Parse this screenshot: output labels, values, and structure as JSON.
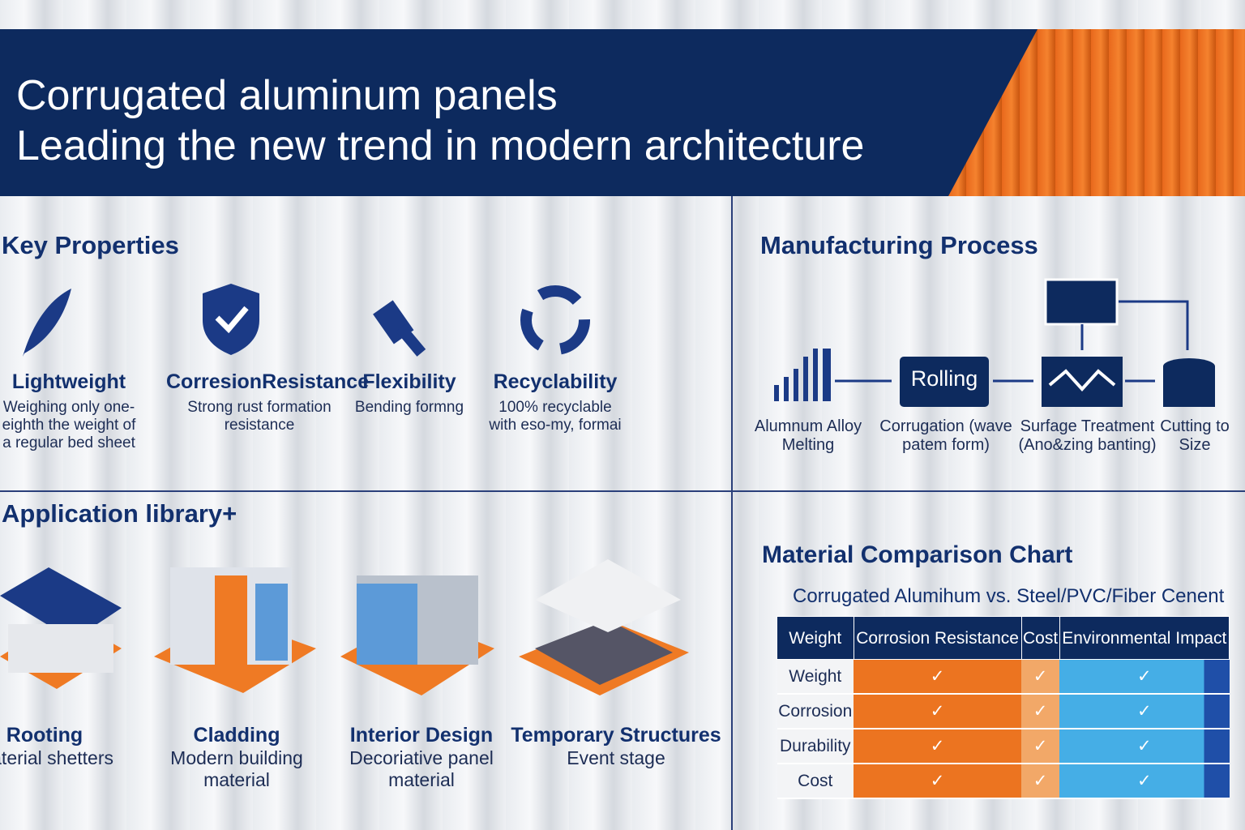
{
  "header": {
    "title_lines": [
      "Corrugated aluminum panels",
      "Leading the new trend in modern architecture"
    ]
  },
  "key_properties": {
    "title": "Key Properties",
    "items": [
      {
        "name": "Lightweight",
        "description": "Weighing only one-eighth the weight of a regular bed sheet"
      },
      {
        "name": "CorresionResistance",
        "description": "Strong rust formation resistance"
      },
      {
        "name": "Flexibility",
        "description": "Bending formng"
      },
      {
        "name": "Recyclability",
        "description": "100% recyclable with eso-my, formai"
      }
    ]
  },
  "manufacturing": {
    "title": "Manufacturing Process",
    "rolling_box": "Rolling",
    "steps": [
      "Alumnum Alloy Melting",
      "Corrugation (wave patem form)",
      "Surfage Treatment (Ano&zing banting)",
      "Cutting to Size"
    ]
  },
  "applications": {
    "title": "Application library+",
    "items": [
      {
        "name": "Rooting",
        "description": "Material shetters"
      },
      {
        "name": "Cladding",
        "description": "Modern building material"
      },
      {
        "name": "Interior Design",
        "description": "Decoriative panel material"
      },
      {
        "name": "Temporary Structures",
        "description": "Event stage"
      }
    ]
  },
  "comparison": {
    "title": "Material Comparison Chart",
    "subtitle": "Corrugated Alumihum vs. Steel/PVC/Fiber Cenent",
    "table": {
      "header": [
        "Weight",
        "Corrosion Resistance",
        "Cost",
        "Environmental Impact"
      ],
      "rows": [
        [
          "Weight",
          "✓",
          "✓",
          "✓"
        ],
        [
          "Corrosion",
          "✓",
          "✓",
          "✓"
        ],
        [
          "Durability",
          "✓",
          "✓",
          "✓"
        ],
        [
          "Cost",
          "✓",
          "✓",
          "✓"
        ]
      ]
    }
  }
}
